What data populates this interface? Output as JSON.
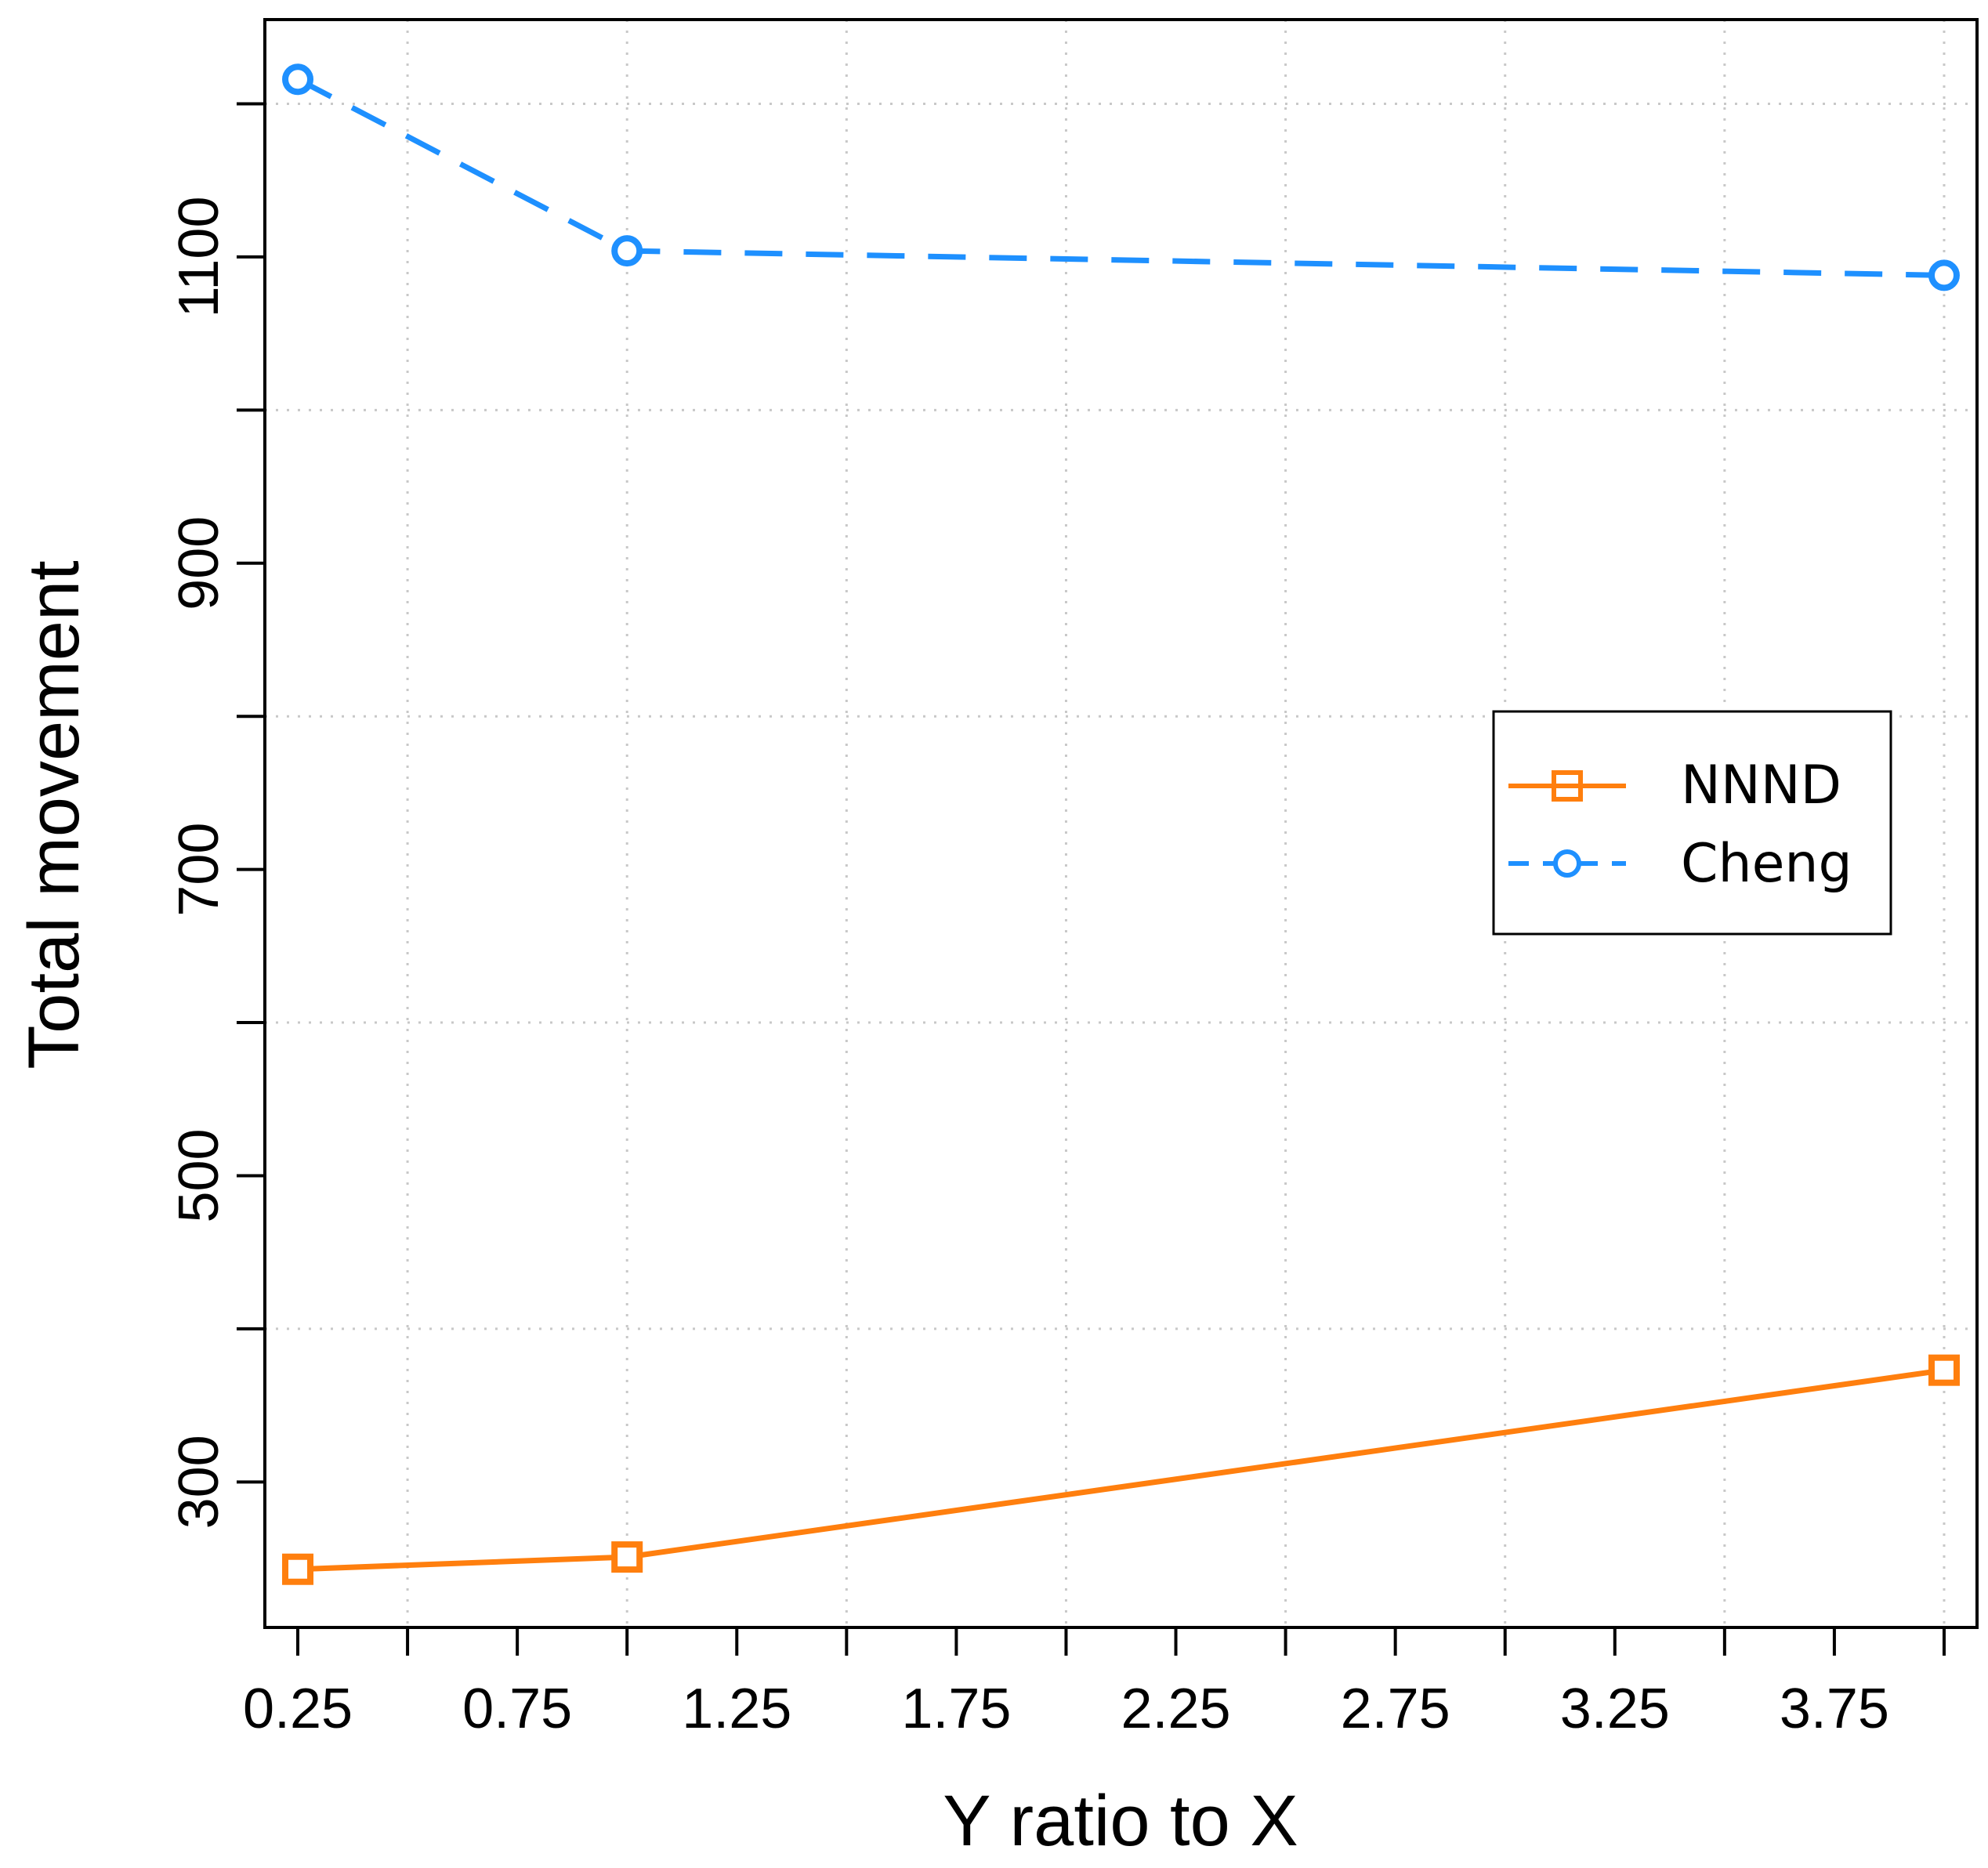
{
  "chart_data": {
    "type": "line",
    "title": "",
    "xlabel": "Y ratio to X",
    "ylabel": "Total movement",
    "xlim": [
      0.175,
      4.075
    ],
    "ylim": [
      205,
      1255
    ],
    "x_ticks": [
      0.25,
      0.5,
      0.75,
      1.0,
      1.25,
      1.5,
      1.75,
      2.0,
      2.25,
      2.5,
      2.75,
      3.0,
      3.25,
      3.5,
      3.75,
      4.0
    ],
    "x_tick_labels": [
      "0.25",
      "",
      "0.75",
      "",
      "1.25",
      "",
      "1.75",
      "",
      "2.25",
      "",
      "2.75",
      "",
      "3.25",
      "",
      "3.75",
      ""
    ],
    "y_ticks": [
      300,
      400,
      500,
      600,
      700,
      800,
      900,
      1000,
      1100,
      1200
    ],
    "y_tick_labels": [
      "300",
      "",
      "500",
      "",
      "700",
      "",
      "900",
      "",
      "1100",
      ""
    ],
    "grid": true,
    "legend_position": "right",
    "series": [
      {
        "name": "NNND",
        "color": "#ff7f0e",
        "line_style": "solid",
        "marker": "square",
        "x": [
          0.25,
          1.0,
          4.0
        ],
        "values": [
          243,
          251,
          373
        ]
      },
      {
        "name": "Cheng",
        "color": "#1e90ff",
        "line_style": "dashed",
        "marker": "circle",
        "x": [
          0.25,
          1.0,
          4.0
        ],
        "values": [
          1216,
          1104,
          1088
        ]
      }
    ]
  }
}
